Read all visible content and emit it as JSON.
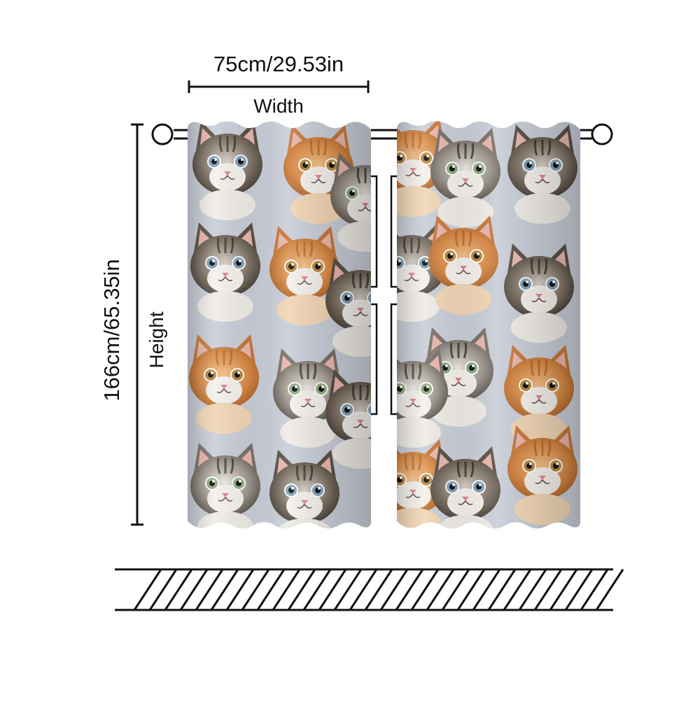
{
  "dimensions": {
    "width_value": "75cm/29.53in",
    "width_label": "Width",
    "height_value": "166cm/65.35in",
    "height_label": "Height"
  },
  "curtain_panels": [
    {
      "name": "left",
      "pattern": "kittens"
    },
    {
      "name": "right",
      "pattern": "kittens"
    }
  ],
  "colors": {
    "line": "#111111",
    "background": "#ffffff",
    "kitten_orange": "#d98a45",
    "kitten_tabby": "#6e6458",
    "kitten_white": "#f2efea",
    "backdrop": "#c9ced8"
  },
  "icons": [
    "curtain-rod-ring-icon",
    "floor-hatch-icon"
  ]
}
